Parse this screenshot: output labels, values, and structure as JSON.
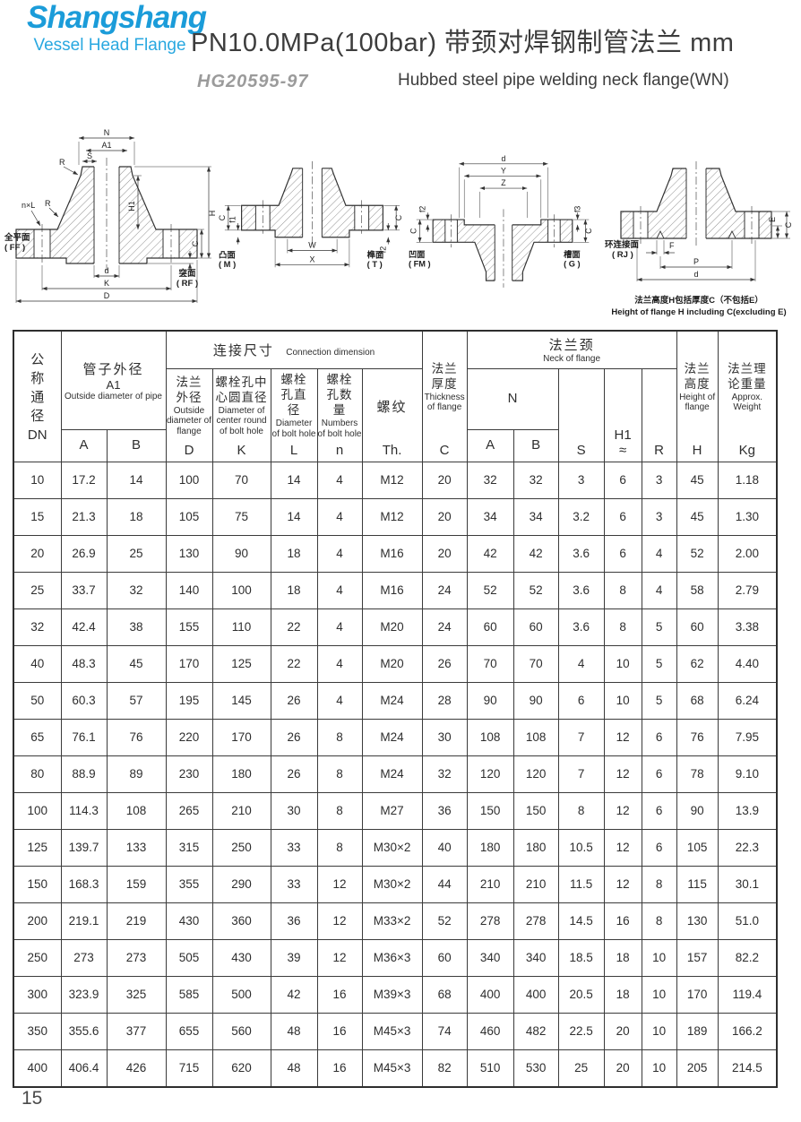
{
  "header": {
    "brand": "Shangshang",
    "brand_sub": "Vessel Head Flange",
    "title": "PN10.0MPa(100bar) 带颈对焊钢制管法兰 mm",
    "standard": "HG20595-97",
    "subtitle": "Hubbed steel pipe welding neck flange(WN)"
  },
  "colors": {
    "brand_blue": "#1B9CD9",
    "text_dark": "#3D3D3D",
    "standard_gray": "#9B9B9B"
  },
  "figures": [
    {
      "left_face_cn": "全平面",
      "left_face_code": "( FF )",
      "right_face_cn": "突面",
      "right_face_code": "( RF )",
      "dims": {
        "n": "N",
        "a1": "A1",
        "s": "S",
        "r": "R",
        "nxl": "n×L",
        "h1": "H1",
        "h": "H",
        "c": "C",
        "h_small": "h",
        "d": "d",
        "k": "K",
        "d_big": "D"
      }
    },
    {
      "left_face_cn": "凸面",
      "left_face_code": "( M )",
      "right_face_cn": "榫面",
      "right_face_code": "( T )",
      "dims": {
        "w": "W",
        "x": "X",
        "c": "C",
        "f1": "f1",
        "f2": "f2"
      }
    },
    {
      "left_face_cn": "凹面",
      "left_face_code": "( FM )",
      "right_face_cn": "槽面",
      "right_face_code": "( G )",
      "dims": {
        "d": "d",
        "y": "Y",
        "z": "Z",
        "c": "C",
        "f2": "f2",
        "f3": "f3"
      }
    },
    {
      "face_cn": "环连接面",
      "face_code": "( RJ )",
      "dims": {
        "f": "F",
        "p": "P",
        "d": "d",
        "e": "E",
        "c": "C"
      },
      "note_cn": "法兰高度H包括厚度C（不包括E）",
      "note_en": "Height of flange H including C(excluding E)"
    }
  ],
  "table": {
    "dn": {
      "cn": "公称通径",
      "code": "DN"
    },
    "pipe": {
      "cn": "管子外径",
      "sub": "A1",
      "en": "Outside diameter of pipe",
      "letters": [
        "A",
        "B"
      ]
    },
    "conn": {
      "cn": "连接尺寸",
      "en": "Connection dimension",
      "cols": [
        {
          "cn": "法兰外径",
          "en": "Outside diameter of flange",
          "letter": "D"
        },
        {
          "cn": "螺栓孔中心圆直径",
          "en": "Diameter of center round of bolt hole",
          "letter": "K"
        },
        {
          "cn": "螺栓孔直径",
          "en": "Diameter of bolt hole",
          "letter": "L"
        },
        {
          "cn": "螺栓孔数量",
          "en": "Numbers of bolt hole",
          "letter": "n"
        },
        {
          "cn": "螺纹",
          "en": "",
          "letter": "Th."
        }
      ]
    },
    "thickness": {
      "cn": "法兰厚度",
      "en": "Thickness of flange",
      "letter": "C"
    },
    "neck": {
      "cn": "法兰颈",
      "en": "Neck of flange",
      "n": "N",
      "n_letters": [
        "A",
        "B"
      ],
      "s": "S",
      "h1": "H1",
      "approx": "≈",
      "r": "R"
    },
    "height": {
      "cn": "法兰高度",
      "en": "Height of flange",
      "letter": "H"
    },
    "weight": {
      "cn": "法兰理论重量",
      "en": "Approx. Weight",
      "letter": "Kg"
    },
    "rows": [
      [
        "10",
        "17.2",
        "14",
        "100",
        "70",
        "14",
        "4",
        "M12",
        "20",
        "32",
        "32",
        "3",
        "6",
        "3",
        "45",
        "1.18"
      ],
      [
        "15",
        "21.3",
        "18",
        "105",
        "75",
        "14",
        "4",
        "M12",
        "20",
        "34",
        "34",
        "3.2",
        "6",
        "3",
        "45",
        "1.30"
      ],
      [
        "20",
        "26.9",
        "25",
        "130",
        "90",
        "18",
        "4",
        "M16",
        "20",
        "42",
        "42",
        "3.6",
        "6",
        "4",
        "52",
        "2.00"
      ],
      [
        "25",
        "33.7",
        "32",
        "140",
        "100",
        "18",
        "4",
        "M16",
        "24",
        "52",
        "52",
        "3.6",
        "8",
        "4",
        "58",
        "2.79"
      ],
      [
        "32",
        "42.4",
        "38",
        "155",
        "110",
        "22",
        "4",
        "M20",
        "24",
        "60",
        "60",
        "3.6",
        "8",
        "5",
        "60",
        "3.38"
      ],
      [
        "40",
        "48.3",
        "45",
        "170",
        "125",
        "22",
        "4",
        "M20",
        "26",
        "70",
        "70",
        "4",
        "10",
        "5",
        "62",
        "4.40"
      ],
      [
        "50",
        "60.3",
        "57",
        "195",
        "145",
        "26",
        "4",
        "M24",
        "28",
        "90",
        "90",
        "6",
        "10",
        "5",
        "68",
        "6.24"
      ],
      [
        "65",
        "76.1",
        "76",
        "220",
        "170",
        "26",
        "8",
        "M24",
        "30",
        "108",
        "108",
        "7",
        "12",
        "6",
        "76",
        "7.95"
      ],
      [
        "80",
        "88.9",
        "89",
        "230",
        "180",
        "26",
        "8",
        "M24",
        "32",
        "120",
        "120",
        "7",
        "12",
        "6",
        "78",
        "9.10"
      ],
      [
        "100",
        "114.3",
        "108",
        "265",
        "210",
        "30",
        "8",
        "M27",
        "36",
        "150",
        "150",
        "8",
        "12",
        "6",
        "90",
        "13.9"
      ],
      [
        "125",
        "139.7",
        "133",
        "315",
        "250",
        "33",
        "8",
        "M30×2",
        "40",
        "180",
        "180",
        "10.5",
        "12",
        "6",
        "105",
        "22.3"
      ],
      [
        "150",
        "168.3",
        "159",
        "355",
        "290",
        "33",
        "12",
        "M30×2",
        "44",
        "210",
        "210",
        "11.5",
        "12",
        "8",
        "115",
        "30.1"
      ],
      [
        "200",
        "219.1",
        "219",
        "430",
        "360",
        "36",
        "12",
        "M33×2",
        "52",
        "278",
        "278",
        "14.5",
        "16",
        "8",
        "130",
        "51.0"
      ],
      [
        "250",
        "273",
        "273",
        "505",
        "430",
        "39",
        "12",
        "M36×3",
        "60",
        "340",
        "340",
        "18.5",
        "18",
        "10",
        "157",
        "82.2"
      ],
      [
        "300",
        "323.9",
        "325",
        "585",
        "500",
        "42",
        "16",
        "M39×3",
        "68",
        "400",
        "400",
        "20.5",
        "18",
        "10",
        "170",
        "119.4"
      ],
      [
        "350",
        "355.6",
        "377",
        "655",
        "560",
        "48",
        "16",
        "M45×3",
        "74",
        "460",
        "482",
        "22.5",
        "20",
        "10",
        "189",
        "166.2"
      ],
      [
        "400",
        "406.4",
        "426",
        "715",
        "620",
        "48",
        "16",
        "M45×3",
        "82",
        "510",
        "530",
        "25",
        "20",
        "10",
        "205",
        "214.5"
      ]
    ]
  },
  "page_number": "15"
}
